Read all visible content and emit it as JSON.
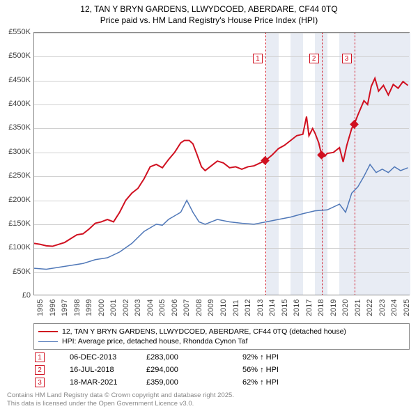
{
  "title": {
    "line1": "12, TAN Y BRYN GARDENS, LLWYDCOED, ABERDARE, CF44 0TQ",
    "line2": "Price paid vs. HM Land Registry's House Price Index (HPI)"
  },
  "chart": {
    "type": "line",
    "background_color": "#ffffff",
    "grid_color": "#d0d0d0",
    "border_color": "#888888",
    "shade_color": "#e8ecf4",
    "x_start": 1995,
    "x_end": 2025.8,
    "x_ticks": [
      1995,
      1996,
      1997,
      1998,
      1999,
      2000,
      2001,
      2002,
      2003,
      2004,
      2005,
      2006,
      2007,
      2008,
      2009,
      2010,
      2011,
      2012,
      2013,
      2014,
      2015,
      2016,
      2017,
      2018,
      2019,
      2020,
      2021,
      2022,
      2023,
      2024,
      2025
    ],
    "y_min": 0,
    "y_max": 550000,
    "y_ticks": [
      0,
      50000,
      100000,
      150000,
      200000,
      250000,
      300000,
      350000,
      400000,
      450000,
      500000,
      550000
    ],
    "y_tick_labels": [
      "£0",
      "£50K",
      "£100K",
      "£150K",
      "£200K",
      "£250K",
      "£300K",
      "£350K",
      "£400K",
      "£450K",
      "£500K",
      "£550K"
    ],
    "shade_ranges": [
      [
        2014,
        2015
      ],
      [
        2016,
        2017
      ],
      [
        2018,
        2019
      ],
      [
        2020,
        2025.8
      ]
    ],
    "series": [
      {
        "name": "price_paid",
        "label": "12, TAN Y BRYN GARDENS, LLWYDCOED, ABERDARE, CF44 0TQ (detached house)",
        "color": "#d01020",
        "width": 2,
        "points": [
          [
            1995,
            110000
          ],
          [
            1995.5,
            108000
          ],
          [
            1996,
            105000
          ],
          [
            1996.5,
            104000
          ],
          [
            1997,
            108000
          ],
          [
            1997.5,
            112000
          ],
          [
            1998,
            120000
          ],
          [
            1998.5,
            128000
          ],
          [
            1999,
            130000
          ],
          [
            1999.5,
            140000
          ],
          [
            2000,
            152000
          ],
          [
            2000.5,
            155000
          ],
          [
            2001,
            160000
          ],
          [
            2001.5,
            155000
          ],
          [
            2002,
            175000
          ],
          [
            2002.5,
            200000
          ],
          [
            2003,
            215000
          ],
          [
            2003.5,
            225000
          ],
          [
            2004,
            245000
          ],
          [
            2004.5,
            270000
          ],
          [
            2005,
            275000
          ],
          [
            2005.5,
            268000
          ],
          [
            2006,
            285000
          ],
          [
            2006.5,
            300000
          ],
          [
            2007,
            320000
          ],
          [
            2007.3,
            325000
          ],
          [
            2007.7,
            325000
          ],
          [
            2008,
            318000
          ],
          [
            2008.3,
            298000
          ],
          [
            2008.7,
            270000
          ],
          [
            2009,
            262000
          ],
          [
            2009.5,
            272000
          ],
          [
            2010,
            282000
          ],
          [
            2010.5,
            278000
          ],
          [
            2011,
            268000
          ],
          [
            2011.5,
            270000
          ],
          [
            2012,
            265000
          ],
          [
            2012.5,
            270000
          ],
          [
            2013,
            272000
          ],
          [
            2013.5,
            278000
          ],
          [
            2013.93,
            283000
          ],
          [
            2014.5,
            295000
          ],
          [
            2015,
            308000
          ],
          [
            2015.5,
            315000
          ],
          [
            2016,
            325000
          ],
          [
            2016.5,
            335000
          ],
          [
            2017,
            338000
          ],
          [
            2017.3,
            375000
          ],
          [
            2017.5,
            335000
          ],
          [
            2017.8,
            350000
          ],
          [
            2018,
            340000
          ],
          [
            2018.3,
            320000
          ],
          [
            2018.54,
            294000
          ],
          [
            2018.8,
            292000
          ],
          [
            2019,
            298000
          ],
          [
            2019.5,
            300000
          ],
          [
            2020,
            310000
          ],
          [
            2020.3,
            280000
          ],
          [
            2020.6,
            315000
          ],
          [
            2021,
            350000
          ],
          [
            2021.21,
            359000
          ],
          [
            2021.5,
            378000
          ],
          [
            2022,
            408000
          ],
          [
            2022.3,
            400000
          ],
          [
            2022.6,
            438000
          ],
          [
            2022.9,
            455000
          ],
          [
            2023.2,
            428000
          ],
          [
            2023.6,
            440000
          ],
          [
            2024,
            420000
          ],
          [
            2024.4,
            442000
          ],
          [
            2024.8,
            434000
          ],
          [
            2025.2,
            448000
          ],
          [
            2025.6,
            440000
          ]
        ]
      },
      {
        "name": "hpi",
        "label": "HPI: Average price, detached house, Rhondda Cynon Taf",
        "color": "#5078b8",
        "width": 1.5,
        "points": [
          [
            1995,
            58000
          ],
          [
            1996,
            56000
          ],
          [
            1997,
            60000
          ],
          [
            1998,
            64000
          ],
          [
            1999,
            68000
          ],
          [
            2000,
            76000
          ],
          [
            2001,
            80000
          ],
          [
            2002,
            92000
          ],
          [
            2003,
            110000
          ],
          [
            2004,
            135000
          ],
          [
            2005,
            150000
          ],
          [
            2005.5,
            148000
          ],
          [
            2006,
            160000
          ],
          [
            2007,
            175000
          ],
          [
            2007.5,
            200000
          ],
          [
            2008,
            175000
          ],
          [
            2008.5,
            155000
          ],
          [
            2009,
            150000
          ],
          [
            2010,
            160000
          ],
          [
            2011,
            155000
          ],
          [
            2012,
            152000
          ],
          [
            2013,
            150000
          ],
          [
            2014,
            155000
          ],
          [
            2015,
            160000
          ],
          [
            2016,
            165000
          ],
          [
            2017,
            172000
          ],
          [
            2018,
            178000
          ],
          [
            2019,
            180000
          ],
          [
            2020,
            192000
          ],
          [
            2020.5,
            175000
          ],
          [
            2021,
            215000
          ],
          [
            2021.5,
            228000
          ],
          [
            2022,
            250000
          ],
          [
            2022.5,
            275000
          ],
          [
            2023,
            258000
          ],
          [
            2023.5,
            265000
          ],
          [
            2024,
            258000
          ],
          [
            2024.5,
            270000
          ],
          [
            2025,
            262000
          ],
          [
            2025.6,
            268000
          ]
        ]
      }
    ],
    "sale_markers": [
      {
        "id": "1",
        "x": 2013.93,
        "y": 283000,
        "date": "06-DEC-2013",
        "price": "£283,000",
        "hpi_delta": "92% ↑ HPI"
      },
      {
        "id": "2",
        "x": 2018.54,
        "y": 294000,
        "date": "16-JUL-2018",
        "price": "£294,000",
        "hpi_delta": "56% ↑ HPI"
      },
      {
        "id": "3",
        "x": 2021.21,
        "y": 359000,
        "date": "18-MAR-2021",
        "price": "£359,000",
        "hpi_delta": "62% ↑ HPI"
      }
    ],
    "marker_color": "#d01020",
    "title_fontsize": 12,
    "axis_fontsize": 11
  },
  "footer": {
    "line1": "Contains HM Land Registry data © Crown copyright and database right 2025.",
    "line2": "This data is licensed under the Open Government Licence v3.0."
  }
}
